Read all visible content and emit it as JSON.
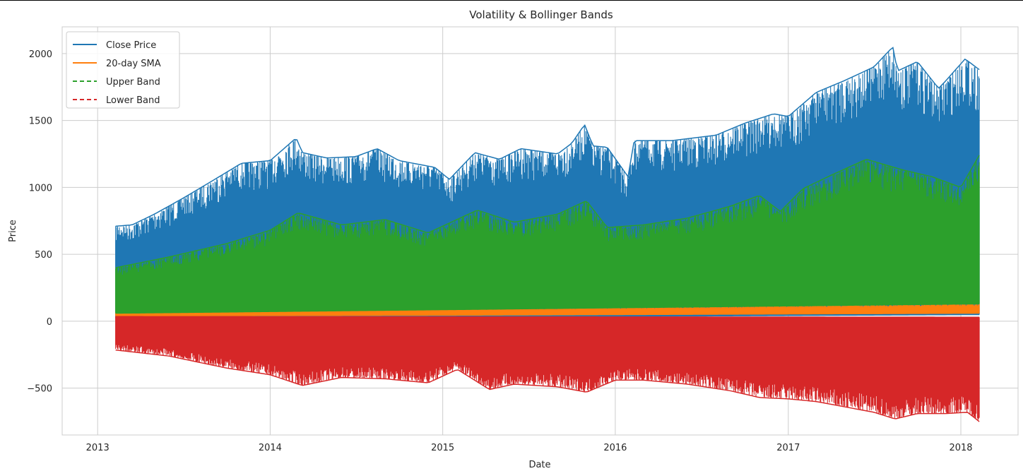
{
  "chart_data": {
    "type": "line",
    "title": "Volatility & Bollinger Bands",
    "xlabel": "Date",
    "ylabel": "Price",
    "xlim": [
      "2012-10-18",
      "2018-05-02"
    ],
    "ylim": [
      -850,
      2200
    ],
    "x_ticks": [
      "2013-01-01",
      "2014-01-01",
      "2015-01-01",
      "2016-01-01",
      "2017-01-01",
      "2018-01-01"
    ],
    "x_tick_labels": [
      "2013",
      "2014",
      "2015",
      "2016",
      "2017",
      "2018"
    ],
    "y_ticks": [
      -500,
      0,
      500,
      1000,
      1500,
      2000
    ],
    "y_tick_labels": [
      "−500",
      "0",
      "500",
      "1000",
      "1500",
      "2000"
    ],
    "grid": true,
    "legend_position": "top-left",
    "series": [
      {
        "name": "Close Price",
        "color": "#1f77b4",
        "style": "solid",
        "upper_envelope": {
          "x": [
            "2013-02-08",
            "2013-03-15",
            "2013-05-01",
            "2013-07-01",
            "2013-09-01",
            "2013-11-01",
            "2014-01-01",
            "2014-02-25",
            "2014-03-10",
            "2014-05-01",
            "2014-07-01",
            "2014-08-15",
            "2014-10-01",
            "2014-12-15",
            "2015-01-15",
            "2015-03-10",
            "2015-05-01",
            "2015-06-15",
            "2015-09-01",
            "2015-10-01",
            "2015-10-28",
            "2015-11-15",
            "2015-12-15",
            "2016-01-28",
            "2016-02-10",
            "2016-05-01",
            "2016-08-01",
            "2016-10-01",
            "2016-12-01",
            "2017-01-01",
            "2017-03-01",
            "2017-05-01",
            "2017-07-01",
            "2017-08-10",
            "2017-08-20",
            "2017-10-01",
            "2017-11-15",
            "2017-12-01",
            "2018-01-10",
            "2018-02-09"
          ],
          "y": [
            710,
            720,
            800,
            920,
            1050,
            1180,
            1200,
            1370,
            1260,
            1220,
            1230,
            1290,
            1200,
            1150,
            1060,
            1260,
            1210,
            1290,
            1250,
            1330,
            1470,
            1310,
            1300,
            1080,
            1350,
            1350,
            1390,
            1480,
            1550,
            1530,
            1710,
            1800,
            1900,
            2050,
            1870,
            1940,
            1740,
            1800,
            1960,
            1880
          ]
        },
        "lower_envelope": {
          "x": [
            "2013-02-08",
            "2015-01-01",
            "2018-02-09"
          ],
          "y": [
            20,
            30,
            50
          ]
        }
      },
      {
        "name": "20-day SMA",
        "color": "#ff7f0e",
        "style": "solid",
        "upper_envelope": {
          "x": [
            "2013-02-08",
            "2015-01-01",
            "2018-02-09"
          ],
          "y": [
            70,
            90,
            130
          ]
        },
        "lower_envelope": {
          "x": [
            "2013-02-08",
            "2015-01-01",
            "2018-02-09"
          ],
          "y": [
            40,
            45,
            60
          ]
        }
      },
      {
        "name": "Upper Band",
        "color": "#2ca02c",
        "style": "dashed",
        "upper_envelope": {
          "x": [
            "2013-02-08",
            "2013-06-01",
            "2013-10-01",
            "2014-01-01",
            "2014-03-01",
            "2014-06-01",
            "2014-09-01",
            "2014-12-01",
            "2015-03-15",
            "2015-06-01",
            "2015-09-01",
            "2015-11-01",
            "2015-12-15",
            "2016-03-01",
            "2016-06-01",
            "2016-09-01",
            "2016-11-01",
            "2016-12-15",
            "2017-02-01",
            "2017-04-01",
            "2017-06-15",
            "2017-09-01",
            "2017-11-01",
            "2018-01-01",
            "2018-02-09"
          ],
          "y": [
            400,
            480,
            580,
            680,
            810,
            720,
            760,
            660,
            830,
            740,
            800,
            900,
            700,
            720,
            770,
            860,
            940,
            820,
            990,
            1090,
            1210,
            1130,
            1080,
            1000,
            1240
          ]
        },
        "lower_envelope": {
          "x": [
            "2013-02-08",
            "2018-02-09"
          ],
          "y": [
            60,
            130
          ]
        }
      },
      {
        "name": "Lower Band",
        "color": "#d62728",
        "style": "dashed",
        "upper_envelope": {
          "x": [
            "2013-02-08",
            "2018-02-09"
          ],
          "y": [
            35,
            30
          ]
        },
        "lower_envelope": {
          "x": [
            "2013-02-08",
            "2013-06-01",
            "2013-10-01",
            "2014-01-01",
            "2014-03-10",
            "2014-06-01",
            "2014-09-01",
            "2014-12-01",
            "2015-02-01",
            "2015-04-10",
            "2015-06-01",
            "2015-09-01",
            "2015-11-01",
            "2016-01-01",
            "2016-03-01",
            "2016-06-01",
            "2016-09-01",
            "2016-11-01",
            "2017-01-01",
            "2017-03-01",
            "2017-05-01",
            "2017-07-01",
            "2017-08-15",
            "2017-10-01",
            "2017-12-01",
            "2018-01-15",
            "2018-02-09"
          ],
          "y": [
            -215,
            -260,
            -350,
            -400,
            -480,
            -420,
            -430,
            -460,
            -360,
            -510,
            -470,
            -490,
            -530,
            -440,
            -440,
            -470,
            -520,
            -570,
            -580,
            -600,
            -640,
            -680,
            -730,
            -690,
            -690,
            -680,
            -750
          ]
        }
      }
    ]
  }
}
